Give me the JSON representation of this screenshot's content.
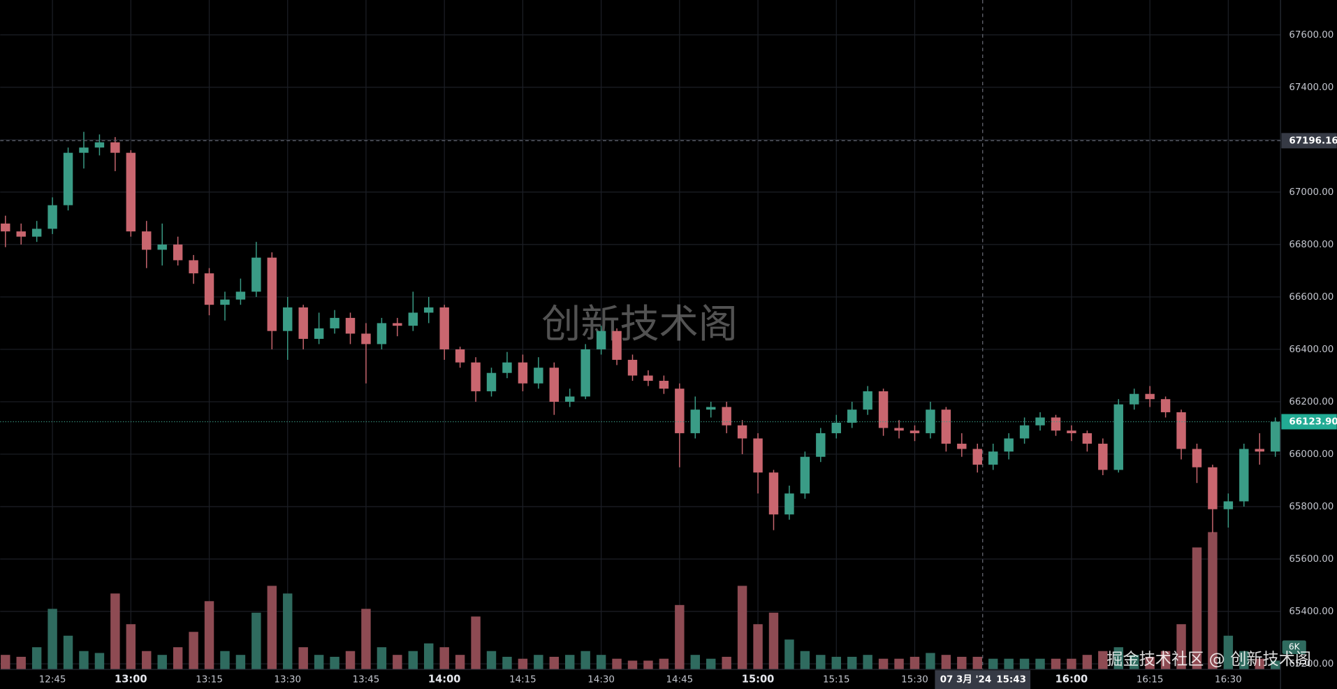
{
  "chart_data": {
    "type": "candlestick",
    "x": [
      "12:36",
      "12:39",
      "12:42",
      "12:45",
      "12:48",
      "12:51",
      "12:54",
      "12:57",
      "13:00",
      "13:03",
      "13:06",
      "13:09",
      "13:12",
      "13:15",
      "13:18",
      "13:21",
      "13:24",
      "13:27",
      "13:30",
      "13:33",
      "13:36",
      "13:39",
      "13:42",
      "13:45",
      "13:48",
      "13:51",
      "13:54",
      "13:57",
      "14:00",
      "14:03",
      "14:06",
      "14:09",
      "14:12",
      "14:15",
      "14:18",
      "14:21",
      "14:24",
      "14:27",
      "14:30",
      "14:33",
      "14:36",
      "14:39",
      "14:42",
      "14:45",
      "14:48",
      "14:51",
      "14:54",
      "14:57",
      "15:00",
      "15:03",
      "15:06",
      "15:09",
      "15:12",
      "15:15",
      "15:18",
      "15:21",
      "15:24",
      "15:27",
      "15:30",
      "15:33",
      "15:36",
      "15:39",
      "15:42",
      "15:45",
      "15:48",
      "15:51",
      "15:54",
      "15:57",
      "16:00",
      "16:03",
      "16:06",
      "16:09",
      "16:12",
      "16:15",
      "16:18",
      "16:21",
      "16:24",
      "16:27",
      "16:30",
      "16:33",
      "16:36",
      "16:39"
    ],
    "open": [
      66880,
      66850,
      66830,
      66860,
      66950,
      67150,
      67170,
      67190,
      67150,
      66850,
      66780,
      66800,
      66740,
      66690,
      66570,
      66590,
      66620,
      66750,
      66470,
      66560,
      66440,
      66480,
      66520,
      66460,
      66420,
      66500,
      66490,
      66540,
      66560,
      66400,
      66350,
      66240,
      66310,
      66350,
      66270,
      66330,
      66200,
      66220,
      66400,
      66470,
      66360,
      66300,
      66280,
      66250,
      66080,
      66170,
      66180,
      66110,
      66060,
      65930,
      65770,
      65850,
      65990,
      66080,
      66120,
      66170,
      66240,
      66100,
      66090,
      66080,
      66170,
      66040,
      66020,
      65960,
      66010,
      66060,
      66110,
      66140,
      66090,
      66080,
      66040,
      65940,
      66190,
      66230,
      66210,
      66160,
      66020,
      65950,
      65790,
      65820,
      66020,
      66010
    ],
    "high": [
      66910,
      66880,
      66890,
      66980,
      67170,
      67230,
      67220,
      67210,
      67160,
      66890,
      66880,
      66830,
      66760,
      66710,
      66620,
      66670,
      66810,
      66770,
      66600,
      66570,
      66540,
      66550,
      66540,
      66500,
      66520,
      66520,
      66620,
      66600,
      66570,
      66410,
      66370,
      66330,
      66390,
      66380,
      66370,
      66350,
      66250,
      66420,
      66490,
      66480,
      66380,
      66320,
      66300,
      66270,
      66220,
      66200,
      66200,
      66130,
      66080,
      65940,
      65880,
      66010,
      66100,
      66150,
      66200,
      66260,
      66250,
      66130,
      66110,
      66200,
      66180,
      66080,
      66040,
      66040,
      66080,
      66140,
      66160,
      66150,
      66110,
      66090,
      66060,
      66210,
      66250,
      66260,
      66220,
      66170,
      66040,
      65960,
      65850,
      66040,
      66080,
      66140
    ],
    "low": [
      66790,
      66800,
      66810,
      66840,
      66930,
      67090,
      67140,
      67080,
      66830,
      66710,
      66720,
      66720,
      66650,
      66530,
      66510,
      66570,
      66600,
      66400,
      66360,
      66400,
      66420,
      66460,
      66420,
      66270,
      66400,
      66450,
      66470,
      66500,
      66360,
      66330,
      66200,
      66220,
      66290,
      66240,
      66250,
      66150,
      66180,
      66210,
      66380,
      66340,
      66280,
      66260,
      66230,
      65950,
      66060,
      66140,
      66080,
      66000,
      65850,
      65710,
      65750,
      65830,
      65970,
      66060,
      66100,
      66150,
      66070,
      66060,
      66050,
      66060,
      66010,
      65990,
      65930,
      65940,
      65980,
      66040,
      66090,
      66070,
      66050,
      66010,
      65920,
      65930,
      66170,
      66180,
      66140,
      65980,
      65890,
      65700,
      65720,
      65800,
      65960,
      65990
    ],
    "close": [
      66850,
      66830,
      66860,
      66950,
      67150,
      67170,
      67190,
      67150,
      66850,
      66780,
      66800,
      66740,
      66690,
      66570,
      66590,
      66620,
      66750,
      66470,
      66560,
      66440,
      66480,
      66520,
      66460,
      66420,
      66500,
      66490,
      66540,
      66560,
      66400,
      66350,
      66240,
      66310,
      66350,
      66270,
      66330,
      66200,
      66220,
      66400,
      66470,
      66360,
      66300,
      66280,
      66250,
      66080,
      66170,
      66180,
      66110,
      66060,
      65930,
      65770,
      65850,
      65990,
      66080,
      66120,
      66170,
      66240,
      66100,
      66090,
      66080,
      66170,
      66040,
      66020,
      65960,
      66010,
      66060,
      66110,
      66140,
      66090,
      66080,
      66040,
      65940,
      66190,
      66230,
      66210,
      66160,
      66020,
      65950,
      65790,
      65820,
      66020,
      66010,
      66123.9
    ],
    "volume": [
      4000,
      3500,
      6000,
      16000,
      9000,
      5000,
      4500,
      20000,
      12000,
      5000,
      4000,
      6000,
      10000,
      18000,
      5000,
      4000,
      15000,
      22000,
      20000,
      6000,
      4000,
      3500,
      5000,
      16000,
      6000,
      4000,
      5000,
      7000,
      6000,
      4000,
      14000,
      5000,
      3500,
      3000,
      4000,
      3500,
      4000,
      5000,
      4000,
      3000,
      2500,
      2500,
      3000,
      17000,
      4000,
      3000,
      3500,
      22000,
      12000,
      15000,
      8000,
      5000,
      4000,
      3500,
      3500,
      4000,
      3000,
      3000,
      3500,
      4500,
      4000,
      3500,
      3500,
      3000,
      3000,
      3000,
      3000,
      3000,
      3000,
      4000,
      5000,
      6000,
      4000,
      3500,
      5000,
      12000,
      32000,
      36000,
      9000,
      5000,
      3000,
      2500
    ],
    "xlim": [
      "12:35",
      "16:40"
    ],
    "xticks": [
      "12:45",
      "13:00",
      "13:15",
      "13:30",
      "13:45",
      "14:00",
      "14:15",
      "14:30",
      "14:45",
      "15:00",
      "15:15",
      "15:30",
      "16:00",
      "16:15",
      "16:30"
    ],
    "ylim": [
      65130,
      67733
    ],
    "yticks": [
      {
        "value": 65200,
        "label": "65200.00"
      },
      {
        "value": 65400,
        "label": "65400.00"
      },
      {
        "value": 65600,
        "label": "65600.00"
      },
      {
        "value": 65800,
        "label": "65800.00"
      },
      {
        "value": 66000,
        "label": "66000.00"
      },
      {
        "value": 66200,
        "label": "66200.00"
      },
      {
        "value": 66400,
        "label": "66400.00"
      },
      {
        "value": 66600,
        "label": "66600.00"
      },
      {
        "value": 66800,
        "label": "66800.00"
      },
      {
        "value": 67000,
        "label": "67000.00"
      },
      {
        "value": 67200,
        "label": "67200.00"
      },
      {
        "value": 67400,
        "label": "67400.00"
      },
      {
        "value": 67600,
        "label": "67600.00"
      }
    ],
    "vlim": [
      0,
      36000
    ],
    "vticks": [
      {
        "value": 6000,
        "label": "6K"
      }
    ],
    "high_line": 67196.16,
    "last_price": {
      "value": 66123.9,
      "label": "66123.90"
    },
    "crosshair": {
      "date": "07 3月 '24",
      "time": "15:43"
    },
    "up_color": "#3a9c86",
    "down_color": "#c9666f",
    "volume_up_color": "#2f6b5f",
    "volume_down_color": "#8e4b53",
    "grid": true,
    "watermark": "创新技术阁",
    "footer": "掘金技术社区 @ 创新技术阁"
  }
}
